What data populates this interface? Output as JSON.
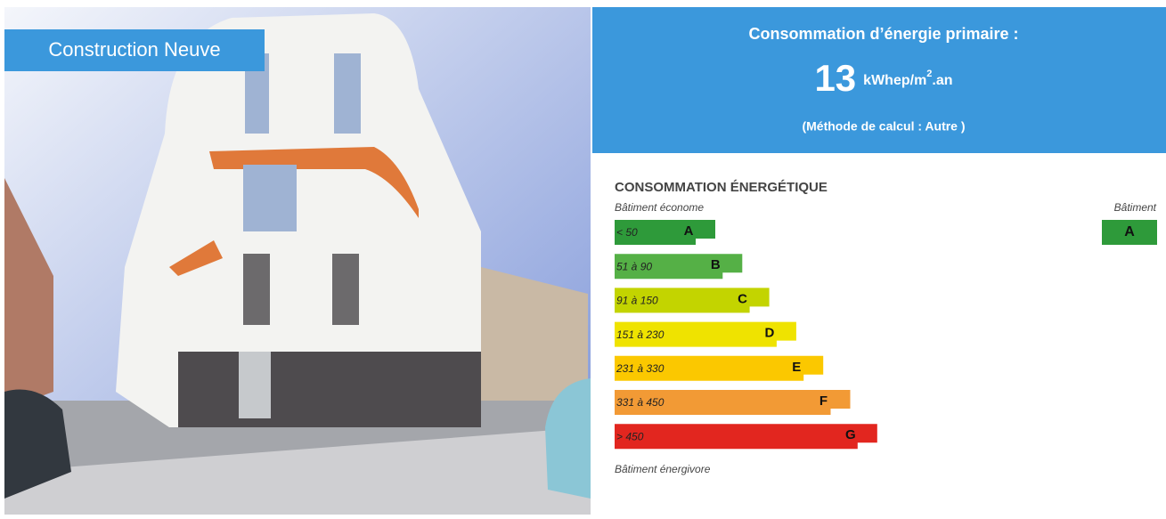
{
  "photo_badge": "Construction Neuve",
  "header": {
    "title": "Consommation d’énergie primaire :",
    "value": "13",
    "unit_main": "kWhep/m",
    "unit_sup": "2",
    "unit_end": ".an",
    "method": "(Méthode de calcul : Autre )"
  },
  "label": {
    "title": "CONSOMMATION ÉNERGÉTIQUE",
    "top_note": "Bâtiment économe",
    "building_heading": "Bâtiment",
    "building_class": "A",
    "bottom_note": "Bâtiment énergivore",
    "classes": [
      {
        "range": "< 50",
        "letter": "A",
        "color": "#2e9a3a"
      },
      {
        "range": "51 à 90",
        "letter": "B",
        "color": "#55b046"
      },
      {
        "range": "91 à 150",
        "letter": "C",
        "color": "#c3d400"
      },
      {
        "range": "151 à 230",
        "letter": "D",
        "color": "#efe300"
      },
      {
        "range": "231 à 330",
        "letter": "E",
        "color": "#fbc800"
      },
      {
        "range": "331 à 450",
        "letter": "F",
        "color": "#f29a35"
      },
      {
        "range": "> 450",
        "letter": "G",
        "color": "#e2261f"
      }
    ]
  }
}
